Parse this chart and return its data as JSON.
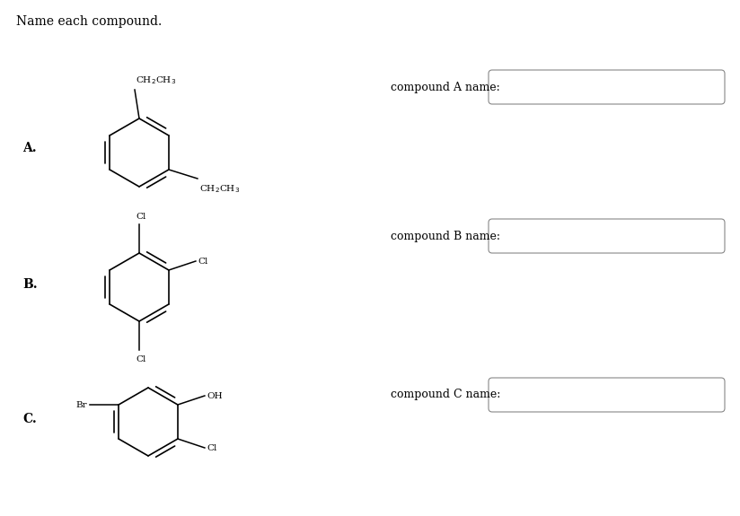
{
  "title": "Name each compound.",
  "background_color": "#ffffff",
  "compound_labels": [
    "A.",
    "B.",
    "C."
  ],
  "input_labels": [
    "compound A name:",
    "compound B name:",
    "compound C name:"
  ],
  "font_size_title": 10,
  "font_size_labels": 9,
  "font_size_compound": 10,
  "font_size_chem": 7.5,
  "figwidth": 8.24,
  "figheight": 5.75,
  "dpi": 100
}
